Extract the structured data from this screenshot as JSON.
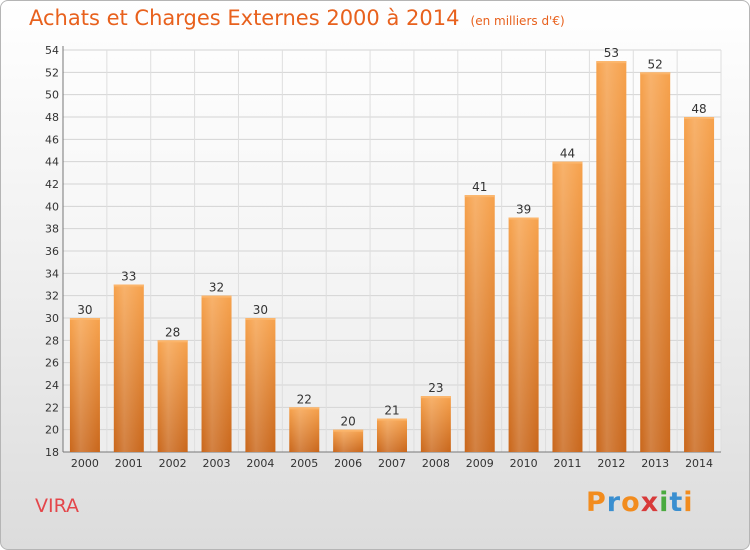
{
  "title": "Achats et Charges Externes 2000 à 2014",
  "subtitle": "(en milliers d'€)",
  "commune": "VIRA",
  "logo": {
    "text": "Proxiti",
    "letters": [
      "P",
      "r",
      "o",
      "x",
      "i",
      "t",
      "i"
    ],
    "colors": [
      "#f28c1e",
      "#3a8fd0",
      "#f28c1e",
      "#d83a3a",
      "#4aaa3f",
      "#3a8fd0",
      "#f28c1e"
    ]
  },
  "chart_data": {
    "type": "bar",
    "categories": [
      "2000",
      "2001",
      "2002",
      "2003",
      "2004",
      "2005",
      "2006",
      "2007",
      "2008",
      "2009",
      "2010",
      "2011",
      "2012",
      "2013",
      "2014"
    ],
    "values": [
      30,
      33,
      28,
      32,
      30,
      22,
      20,
      21,
      23,
      41,
      39,
      44,
      53,
      52,
      48
    ],
    "ylim": [
      18,
      54
    ],
    "yticks": [
      18,
      20,
      22,
      24,
      26,
      28,
      30,
      32,
      34,
      36,
      38,
      40,
      42,
      44,
      46,
      48,
      50,
      52,
      54
    ],
    "grid": true,
    "bar_color": "#f0913a"
  }
}
